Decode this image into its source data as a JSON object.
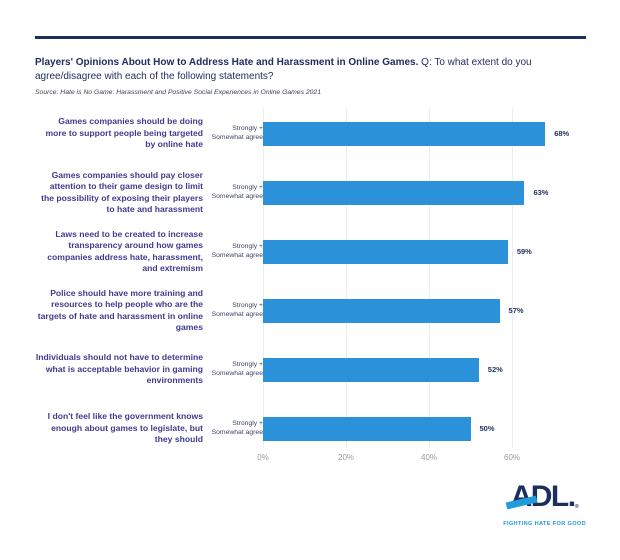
{
  "header": {
    "title_bold": "Players' Opinions About How to Address Hate and Harassment in Online Games.",
    "title_rest": " Q: To what extent do you agree/disagree with each of the following statements?",
    "source": "Source: Hate is No Game: Harassment and Positive Social Experiences in Online Games 2021"
  },
  "chart_data": {
    "type": "bar",
    "orientation": "horizontal",
    "title": "Players' Opinions About How to Address Hate and Harassment in Online Games",
    "categories": [
      "Games companies should be doing more to support people being targeted by online hate",
      "Games companies should pay closer attention to their game design to limit the possibility of exposing their players to hate and harassment",
      "Laws need to be created to increase transparency around how games companies address hate, harassment, and extremism",
      "Police should have more training and resources to help people who are the targets of hate and harassment in online games",
      "Individuals should not have to determine what is acceptable behavior in gaming environments",
      "I don't feel like the government knows enough about games to legislate, but they should"
    ],
    "bar_label": "Strongly +\nSomewhat agree",
    "values": [
      68,
      63,
      59,
      57,
      52,
      50
    ],
    "value_labels": [
      "68%",
      "63%",
      "59%",
      "57%",
      "52%",
      "50%"
    ],
    "x_ticks": [
      {
        "label": "0%",
        "value": 0
      },
      {
        "label": "20%",
        "value": 20
      },
      {
        "label": "40%",
        "value": 40
      },
      {
        "label": "60%",
        "value": 60
      }
    ],
    "xlim": [
      0,
      80
    ],
    "grid": "vertical",
    "legend_position": "none",
    "colors": {
      "bar": "#2b91d9",
      "value_label": "#21335f",
      "category_label": "#3f3b8e",
      "tick_label": "#9b9b9b",
      "grid_line": "#ececec"
    }
  },
  "footer": {
    "logo": {
      "text": "ADL",
      "period": ".",
      "registered": "®",
      "tagline": "FIGHTING HATE FOR GOOD",
      "navy": "#1b2e5c",
      "blue": "#1f9cd9"
    }
  },
  "theme": {
    "rule_color": "#202e5e",
    "background": "#ffffff"
  }
}
